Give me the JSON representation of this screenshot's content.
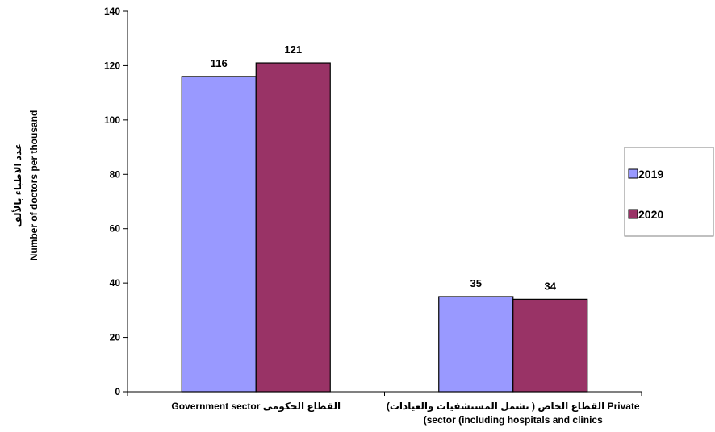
{
  "chart_data": {
    "type": "bar",
    "categories": [
      [
        "Government sector  القطاع الحكومى"
      ],
      [
        "القطاع الخاص ( تشمل المستشفيات والعيادات)   Private",
        "(sector (including hospitals and clinics"
      ]
    ],
    "series": [
      {
        "name": "2019",
        "values": [
          116,
          35
        ],
        "color": "#9999ff"
      },
      {
        "name": "2020",
        "values": [
          121,
          34
        ],
        "color": "#993366"
      }
    ],
    "data_labels": [
      [
        "116",
        "35"
      ],
      [
        "121",
        "34"
      ]
    ],
    "ylabel_arabic": "عدد الاطباء بالألف",
    "ylabel": "Number of doctors per thousand",
    "ylim": [
      0,
      140
    ],
    "yticks": [
      0,
      20,
      40,
      60,
      80,
      100,
      120,
      140
    ],
    "legend_position": "right",
    "grid": false
  }
}
